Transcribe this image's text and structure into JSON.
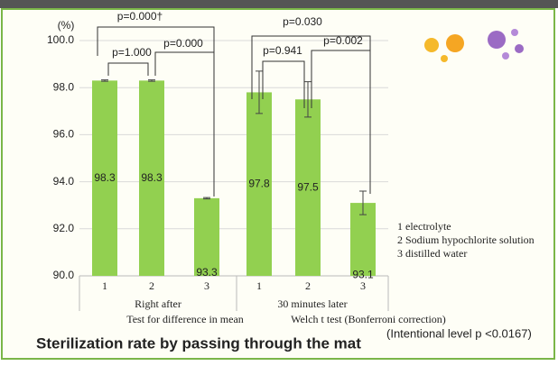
{
  "chart_data": {
    "type": "bar",
    "y_unit": "(%)",
    "categories": [
      "1",
      "2",
      "3",
      "1",
      "2",
      "3"
    ],
    "groups": [
      "Right after",
      "30 minutes later"
    ],
    "values": [
      98.3,
      98.3,
      93.3,
      97.8,
      97.5,
      93.1
    ],
    "errors": [
      0.03,
      0.03,
      0.03,
      0.9,
      0.75,
      0.5
    ],
    "color": "#92d050",
    "ylim": [
      90,
      100
    ],
    "yticks": [
      {
        "value": 90,
        "label": "90.0"
      },
      {
        "value": 92,
        "label": "92.0"
      },
      {
        "value": 94,
        "label": "94.0"
      },
      {
        "value": 96,
        "label": "96.0"
      },
      {
        "value": 98,
        "label": "98.0"
      },
      {
        "value": 100,
        "label": "100.0"
      }
    ],
    "grid": true,
    "annotations": [
      "p=0.000†",
      "p=1.000",
      "p=0.000",
      "p=0.030",
      "p=0.941",
      "p=0.002"
    ],
    "legend_notes": [
      "1 electrolyte",
      "2 Sodium hypochlorite solution",
      "3 distilled water"
    ],
    "x_subtitles": [
      "Test for difference in mean",
      "Welch t test (Bonferroni correction)"
    ],
    "title": "Sterilization rate by passing through the mat",
    "note": "(Intentional level p <0.0167)"
  }
}
